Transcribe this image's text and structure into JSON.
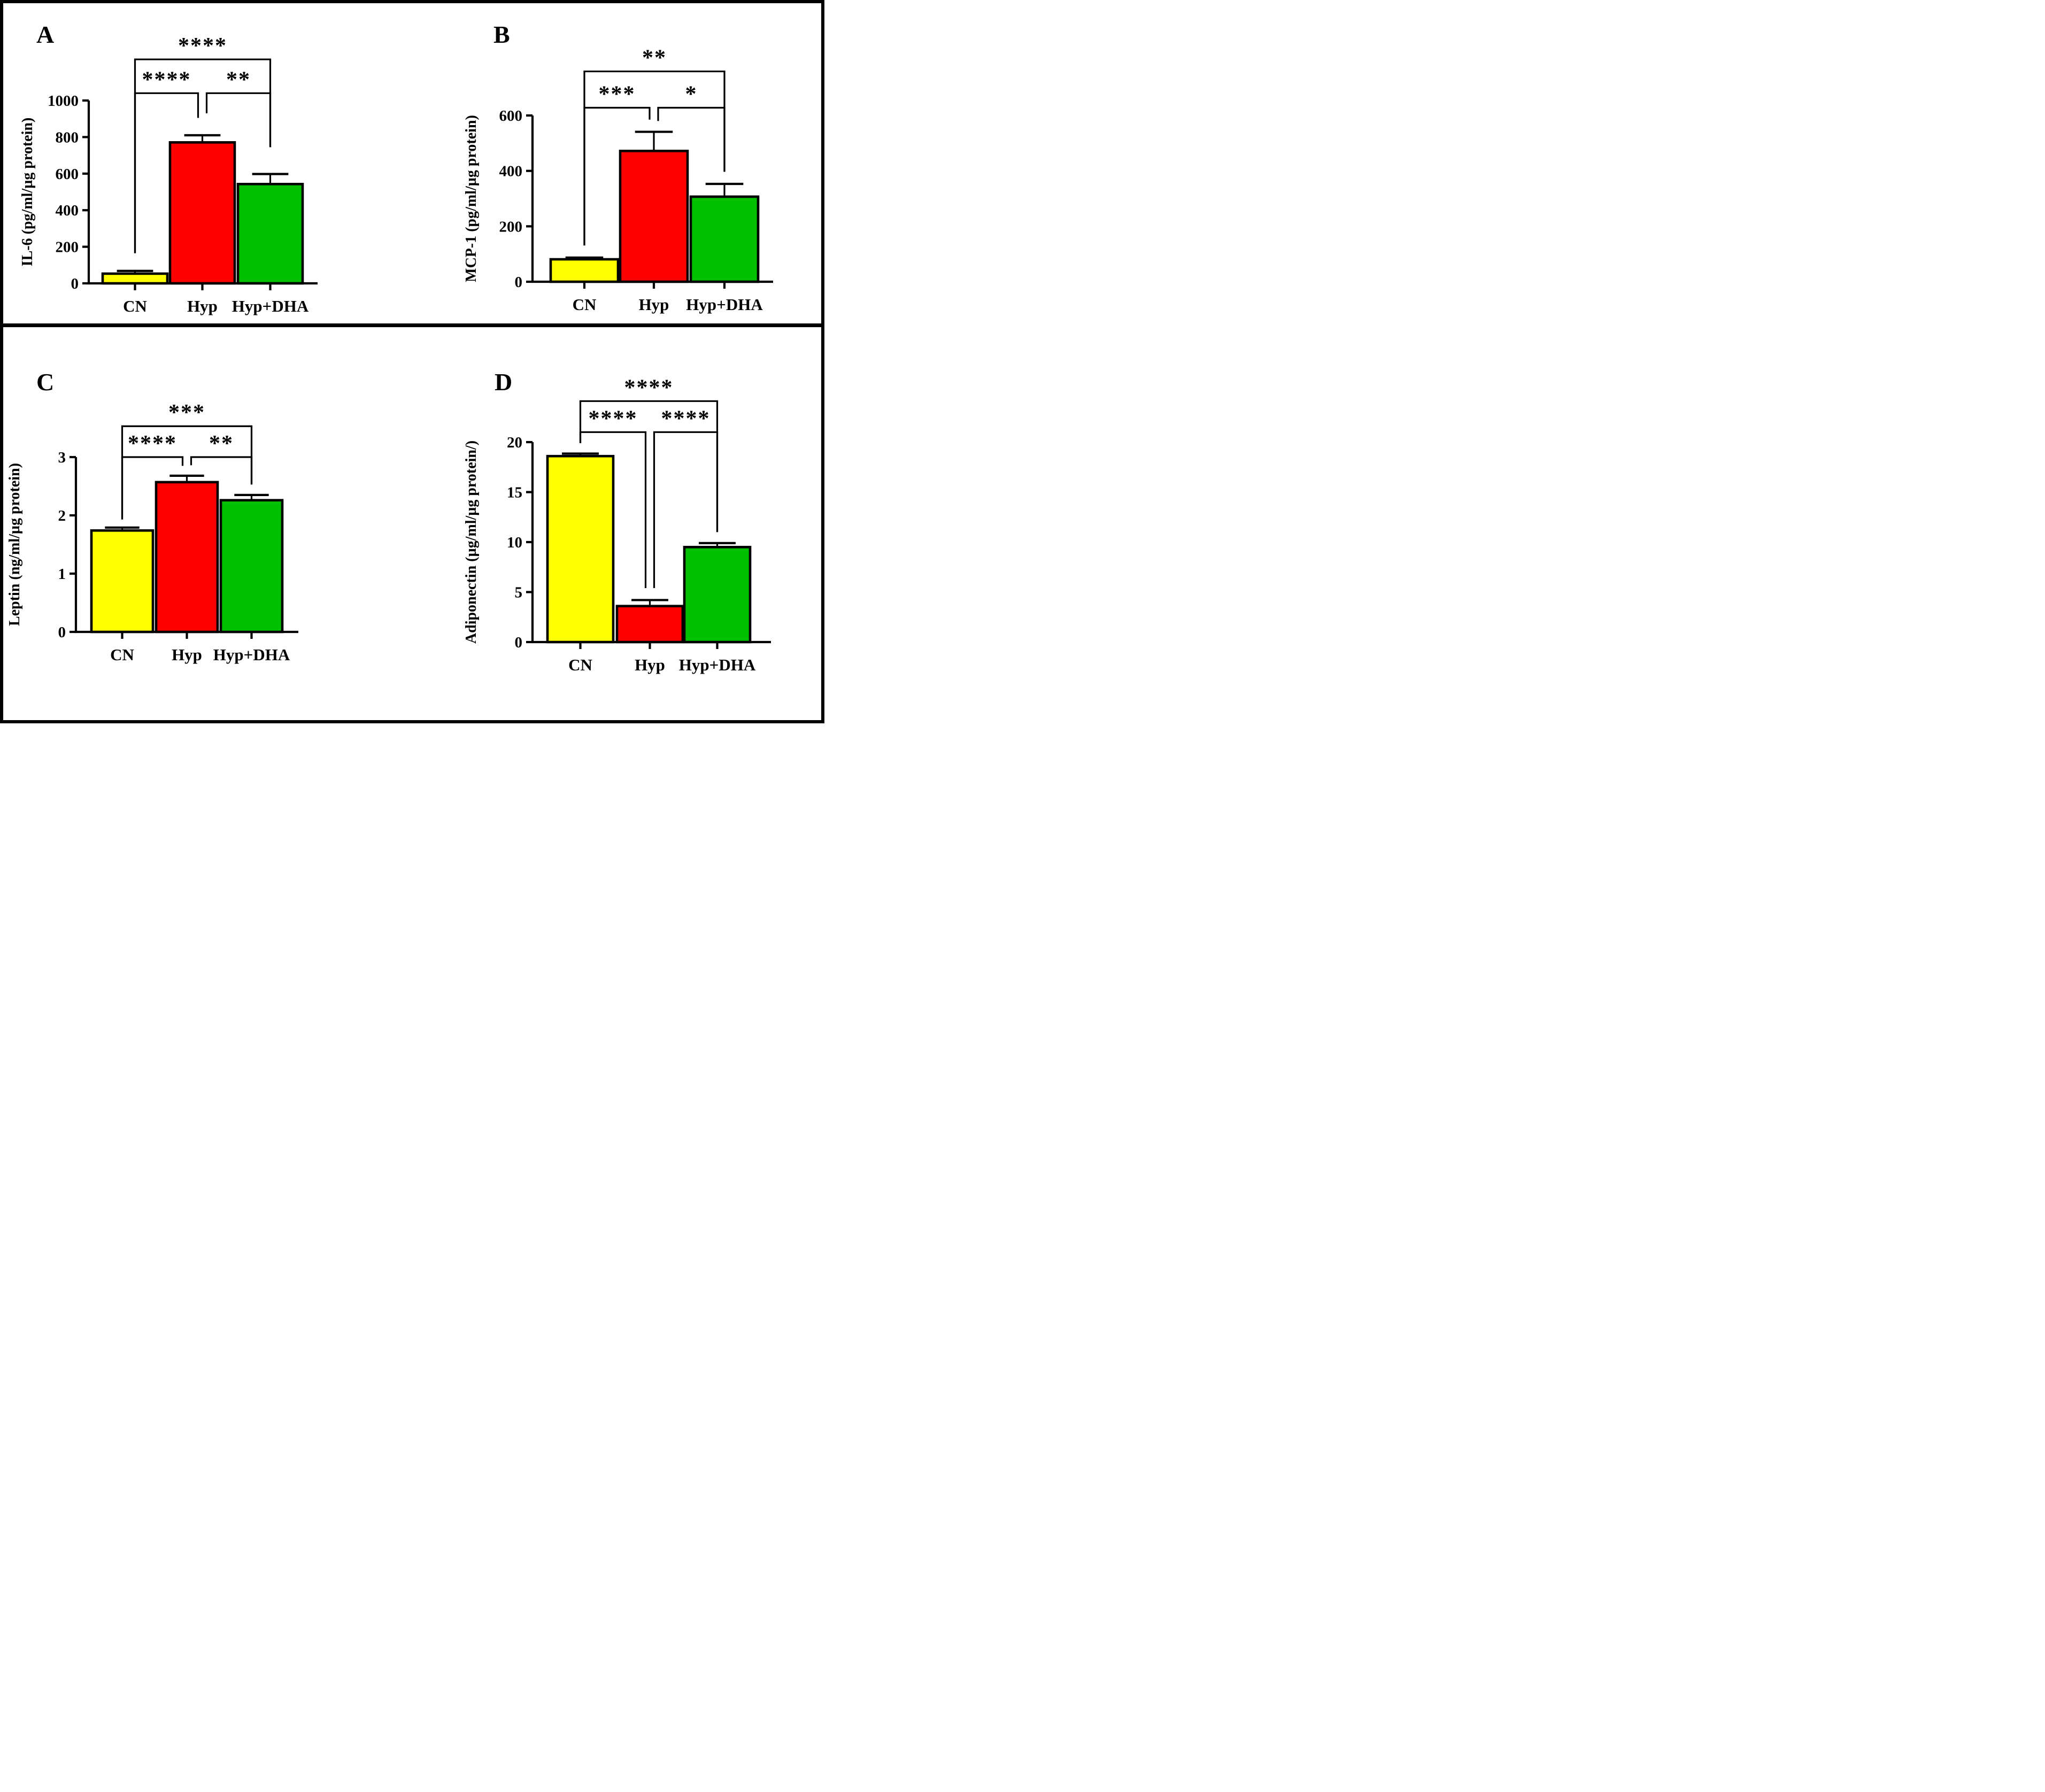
{
  "figure": {
    "background": "#FFFFFF",
    "border_color": "#000000",
    "group_colors": {
      "CN": "#FFFF00",
      "Hyp": "#FF0000",
      "Hyp+DHA": "#00C000"
    }
  },
  "chart_data": [
    {
      "panel": "A",
      "type": "bar",
      "categories": [
        "CN",
        "Hyp",
        "Hyp+DHA"
      ],
      "values": [
        53,
        771,
        543
      ],
      "error_tops": [
        68,
        810,
        598
      ],
      "bar_colors": [
        "#FFFF00",
        "#FF0000",
        "#00C000"
      ],
      "title": "",
      "xlabel": "",
      "ylabel": "IL-6 (pg/ml/µg protein)",
      "ylim": [
        0,
        1000
      ],
      "yticks": [
        0,
        200,
        400,
        600,
        800,
        1000
      ],
      "grid": false,
      "significance": [
        {
          "compare": "CN vs Hyp",
          "stars": "****",
          "from": 0,
          "to": 1,
          "line": 1040,
          "leg_left": 165,
          "leg_right": 905
        },
        {
          "compare": "Hyp vs Hyp+DHA",
          "stars": "**",
          "from": 1,
          "to": 2,
          "line": 1040,
          "leg_left": 930,
          "leg_right": 745
        },
        {
          "compare": "CN vs Hyp+DHA",
          "stars": "****",
          "from": 0,
          "to": 2,
          "line": 1225,
          "leg_left": 165,
          "leg_right": 745
        }
      ]
    },
    {
      "panel": "B",
      "type": "bar",
      "categories": [
        "CN",
        "Hyp",
        "Hyp+DHA"
      ],
      "values": [
        81,
        472,
        307
      ],
      "error_tops": [
        87,
        541,
        353
      ],
      "bar_colors": [
        "#FFFF00",
        "#FF0000",
        "#00C000"
      ],
      "title": "",
      "xlabel": "",
      "ylabel": "MCP-1 (pg/ml/µg protein)",
      "ylim": [
        0,
        600
      ],
      "yticks": [
        0,
        200,
        400,
        600
      ],
      "grid": false,
      "significance": [
        {
          "compare": "CN vs Hyp",
          "stars": "***",
          "from": 0,
          "to": 1,
          "line": 628,
          "leg_left": 131,
          "leg_right": 585
        },
        {
          "compare": "Hyp vs Hyp+DHA",
          "stars": "*",
          "from": 1,
          "to": 2,
          "line": 628,
          "leg_left": 580,
          "leg_right": 397
        },
        {
          "compare": "CN vs Hyp+DHA",
          "stars": "**",
          "from": 0,
          "to": 2,
          "line": 759,
          "leg_left": 131,
          "leg_right": 397
        }
      ]
    },
    {
      "panel": "C",
      "type": "bar",
      "categories": [
        "CN",
        "Hyp",
        "Hyp+DHA"
      ],
      "values": [
        1.74,
        2.57,
        2.26
      ],
      "error_tops": [
        1.79,
        2.68,
        2.35
      ],
      "bar_colors": [
        "#FFFF00",
        "#FF0000",
        "#00C000"
      ],
      "title": "",
      "xlabel": "",
      "ylabel": "Leptin (ng/ml/µg protein)",
      "ylim": [
        0,
        3
      ],
      "yticks": [
        0,
        1,
        2,
        3
      ],
      "grid": false,
      "significance": [
        {
          "compare": "CN vs Hyp",
          "stars": "****",
          "from": 0,
          "to": 1,
          "line": 3.0,
          "leg_left": 1.93,
          "leg_right": 2.85
        },
        {
          "compare": "Hyp vs Hyp+DHA",
          "stars": "**",
          "from": 1,
          "to": 2,
          "line": 3.0,
          "leg_left": 2.86,
          "leg_right": 2.53
        },
        {
          "compare": "CN vs Hyp+DHA",
          "stars": "***",
          "from": 0,
          "to": 2,
          "line": 3.53,
          "leg_left": 1.93,
          "leg_right": 2.53
        }
      ]
    },
    {
      "panel": "D",
      "type": "bar",
      "categories": [
        "CN",
        "Hyp",
        "Hyp+DHA"
      ],
      "values": [
        18.6,
        3.6,
        9.5
      ],
      "error_tops": [
        18.85,
        4.2,
        9.9
      ],
      "bar_colors": [
        "#FFFF00",
        "#FF0000",
        "#00C000"
      ],
      "title": "",
      "xlabel": "",
      "ylabel": "Adiponectin (µg/ml/µg protein/)",
      "ylim": [
        0,
        20
      ],
      "yticks": [
        0,
        5,
        10,
        15,
        20
      ],
      "grid": false,
      "significance": [
        {
          "compare": "CN vs Hyp",
          "stars": "****",
          "from": 0,
          "to": 1,
          "line": 21.0,
          "leg_left": 19.9,
          "leg_right": 5.4
        },
        {
          "compare": "Hyp vs Hyp+DHA",
          "stars": "****",
          "from": 1,
          "to": 2,
          "line": 21.0,
          "leg_left": 5.4,
          "leg_right": 11.0
        },
        {
          "compare": "CN vs Hyp+DHA",
          "stars": "****",
          "from": 0,
          "to": 2,
          "line": 24.1,
          "leg_left": 19.9,
          "leg_right": 11.0
        }
      ]
    }
  ]
}
